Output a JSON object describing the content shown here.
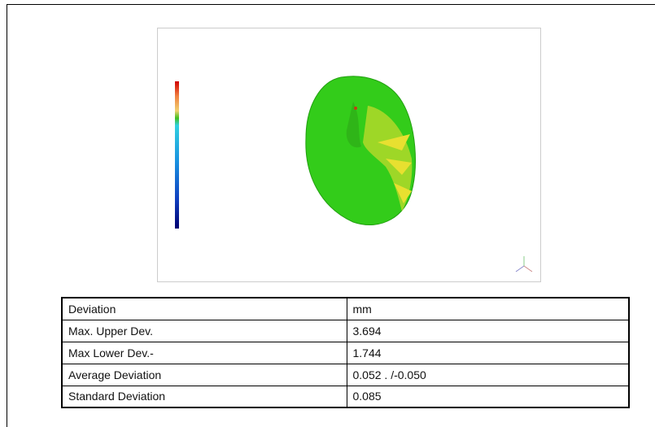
{
  "table": {
    "rows": [
      [
        "Deviation",
        "mm"
      ],
      [
        "Max. Upper Dev.",
        "3.694"
      ],
      [
        "Max Lower Dev.-",
        "1.744"
      ],
      [
        "Average Deviation",
        "0.052 . /-0.050"
      ],
      [
        "Standard Deviation",
        "0.085"
      ]
    ]
  }
}
